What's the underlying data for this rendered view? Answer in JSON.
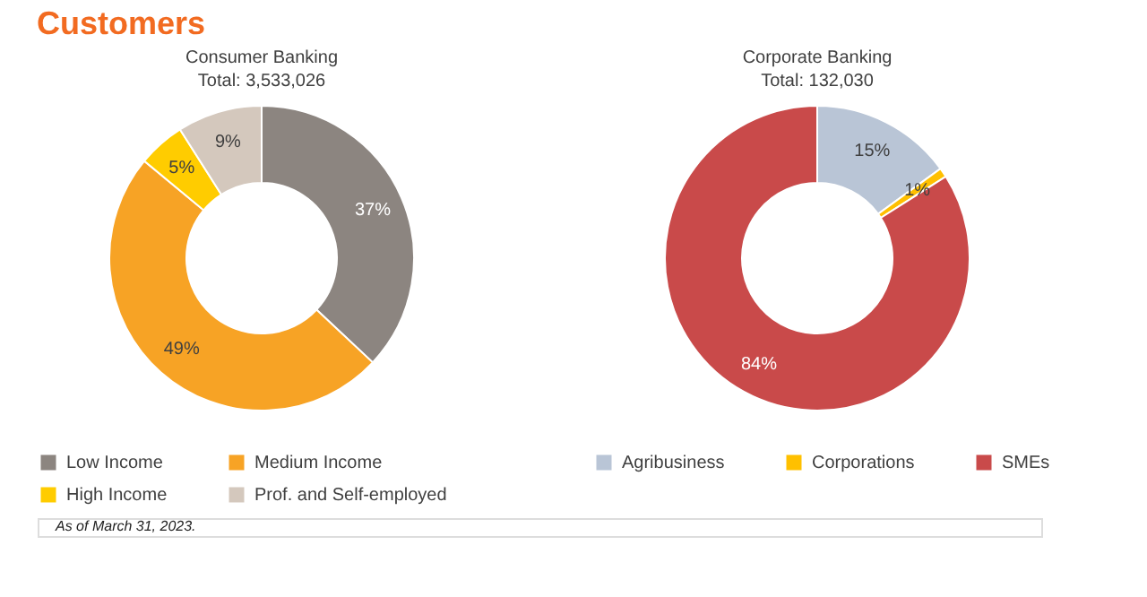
{
  "chart_data": [
    {
      "type": "donut",
      "title": "Consumer Banking",
      "subtitle": "Total: 3,533,026",
      "annotations": [
        "Customers",
        "As of  March 31, 2023."
      ],
      "categories": [
        "Low Income",
        "Medium Income",
        "High Income",
        "Prof. and Self-employed"
      ],
      "values": [
        37,
        49,
        5,
        9
      ],
      "value_labels": [
        "37%",
        "49%",
        "5%",
        "9%"
      ],
      "colors": [
        "#8c8580",
        "#f7a325",
        "#ffcc00",
        "#d4c8bd"
      ],
      "legend": "bottom"
    },
    {
      "type": "donut",
      "title": "Corporate Banking",
      "subtitle": "Total: 132,030",
      "categories": [
        "Agribusiness",
        "Corporations",
        "SMEs"
      ],
      "values": [
        15,
        1,
        84
      ],
      "value_labels": [
        "15%",
        "1%",
        "84%"
      ],
      "colors": [
        "#b9c5d6",
        "#ffc000",
        "#c94a4a"
      ],
      "legend": "bottom"
    }
  ]
}
